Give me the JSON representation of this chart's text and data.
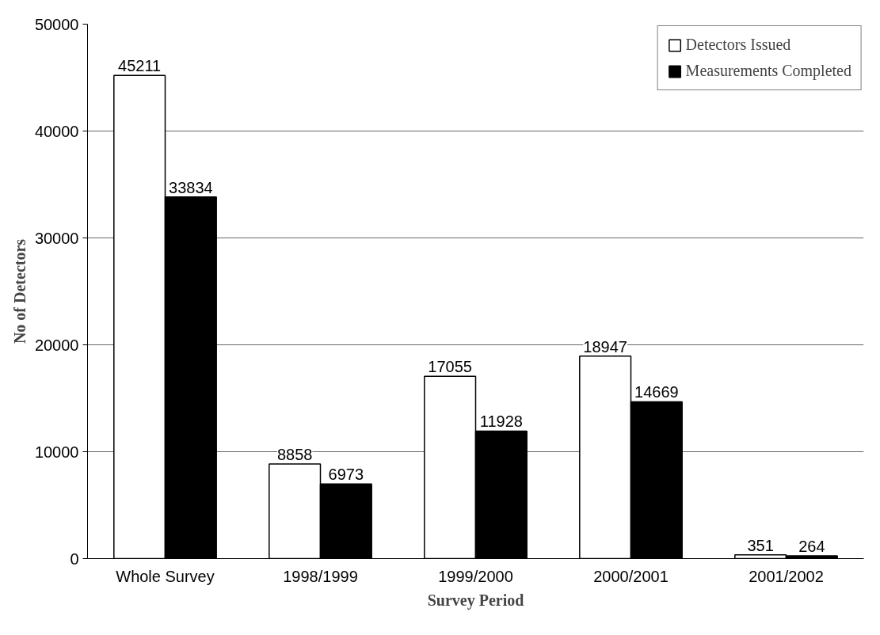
{
  "chart_data": {
    "type": "bar",
    "xlabel": "Survey Period",
    "ylabel": "No of Detectors",
    "categories": [
      "Whole Survey",
      "1998/1999",
      "1999/2000",
      "2000/2001",
      "2001/2002"
    ],
    "series": [
      {
        "name": "Detectors Issued",
        "color": "#ffffff",
        "values": [
          45211,
          8858,
          17055,
          18947,
          351
        ]
      },
      {
        "name": "Measurements Completed",
        "color": "#000000",
        "values": [
          33834,
          6973,
          11928,
          14669,
          264
        ]
      }
    ],
    "ylim": [
      0,
      50000
    ],
    "yticks": [
      0,
      10000,
      20000,
      30000,
      40000,
      50000
    ],
    "grid": "y",
    "legend": "top right",
    "data_labels": true
  }
}
